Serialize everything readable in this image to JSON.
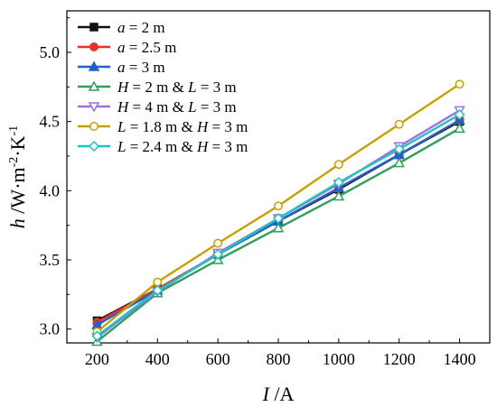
{
  "chart_data": {
    "type": "line",
    "x": [
      200,
      400,
      600,
      800,
      1000,
      1200,
      1400
    ],
    "xlim": [
      100,
      1500
    ],
    "ylim": [
      2.9,
      5.3
    ],
    "xticks": [
      200,
      400,
      600,
      800,
      1000,
      1200,
      1400
    ],
    "yticks": [
      3.0,
      3.5,
      4.0,
      4.5,
      5.0
    ],
    "xtick_labels": [
      "200",
      "400",
      "600",
      "800",
      "1000",
      "1200",
      "1400"
    ],
    "ytick_labels": [
      "3.0",
      "3.5",
      "4.0",
      "4.5",
      "5.0"
    ],
    "xlabel": {
      "var": "I",
      "unit": " /A"
    },
    "ylabel": {
      "var": "h",
      "unit": " /W·m",
      "exp1": "-2",
      "mid": "·K",
      "exp2": "-1"
    },
    "grid": false,
    "legend_position": "top-left",
    "series": [
      {
        "name_var": "a",
        "name_rest": " = 2 m",
        "color": "#111111",
        "marker": "square-filled",
        "values": [
          3.06,
          3.29,
          3.54,
          3.78,
          4.01,
          4.26,
          4.5
        ]
      },
      {
        "name_var": "a",
        "name_rest": " = 2.5 m",
        "color": "#e8312b",
        "marker": "circle-filled",
        "values": [
          3.05,
          3.29,
          3.54,
          3.78,
          4.02,
          4.26,
          4.51
        ]
      },
      {
        "name_var": "a",
        "name_rest": " = 3 m",
        "color": "#2060c8",
        "marker": "triangle-up-filled",
        "values": [
          3.03,
          3.28,
          3.54,
          3.78,
          4.02,
          4.26,
          4.51
        ]
      },
      {
        "name_var": "H",
        "name_rest": " = 2 m & ",
        "name_var2": "L",
        "name_rest2": " = 3 m",
        "color": "#2ea05a",
        "marker": "triangle-up-open",
        "values": [
          2.91,
          3.26,
          3.5,
          3.73,
          3.96,
          4.2,
          4.45
        ]
      },
      {
        "name_var": "H",
        "name_rest": " = 4 m & ",
        "name_var2": "L",
        "name_rest2": " = 3 m",
        "color": "#a070e0",
        "marker": "triangle-down-open",
        "values": [
          2.94,
          3.27,
          3.55,
          3.8,
          4.05,
          4.32,
          4.58
        ]
      },
      {
        "name_var": "L",
        "name_rest": " = 1.8 m & ",
        "name_var2": "H",
        "name_rest2": " = 3 m",
        "color": "#c8a000",
        "marker": "circle-open",
        "values": [
          2.98,
          3.34,
          3.62,
          3.89,
          4.19,
          4.48,
          4.77
        ]
      },
      {
        "name_var": "L",
        "name_rest": " = 2.4 m & ",
        "name_var2": "H",
        "name_rest2": " = 3 m",
        "color": "#1cc4c4",
        "marker": "diamond-open",
        "values": [
          2.95,
          3.28,
          3.54,
          3.8,
          4.06,
          4.3,
          4.55
        ]
      }
    ]
  }
}
